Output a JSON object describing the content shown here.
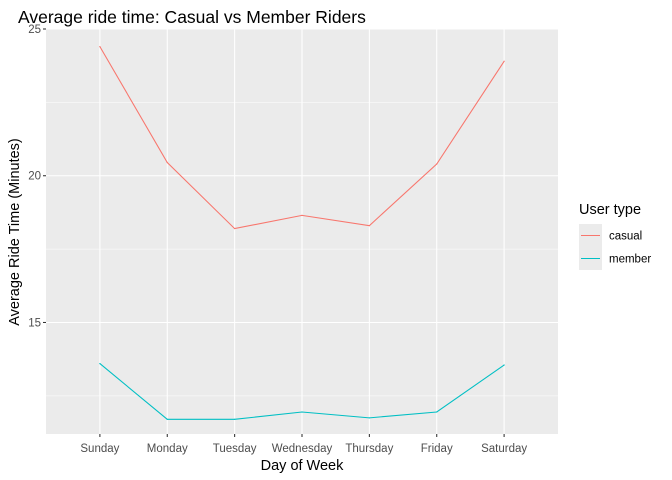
{
  "chart_data": {
    "type": "line",
    "title": "Average ride time: Casual vs Member Riders",
    "xlabel": "Day of Week",
    "ylabel": "Average Ride Time (Minutes)",
    "categories": [
      "Sunday",
      "Monday",
      "Tuesday",
      "Wednesday",
      "Thursday",
      "Friday",
      "Saturday"
    ],
    "ylim": [
      11.2,
      25.0
    ],
    "yticks": [
      15,
      20,
      25
    ],
    "grid": true,
    "legend": {
      "title": "User type",
      "placement": "right"
    },
    "series": [
      {
        "name": "casual",
        "color": "#F8766D",
        "values": [
          24.4,
          20.45,
          18.2,
          18.65,
          18.3,
          20.4,
          23.9
        ]
      },
      {
        "name": "member",
        "color": "#00BFC4",
        "values": [
          13.6,
          11.7,
          11.7,
          11.95,
          11.75,
          11.95,
          13.55
        ]
      }
    ],
    "panel_background": "#EBEBEB"
  }
}
